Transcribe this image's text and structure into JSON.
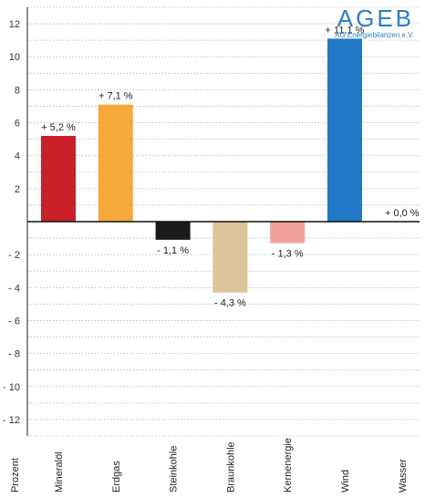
{
  "logo": {
    "name": "AGEB",
    "subtitle": "AG Energiebilanzen e.V."
  },
  "chart_data": {
    "type": "bar",
    "ylabel": "Prozent",
    "ylim": [
      -13,
      13
    ],
    "yticks": [
      12,
      10,
      8,
      6,
      4,
      2,
      -2,
      -4,
      -6,
      -8,
      -10,
      -12
    ],
    "ytick_labels": [
      "12",
      "10",
      "8",
      "6",
      "4",
      "2",
      "- 2",
      "- 4",
      "- 6",
      "- 8",
      "- 10",
      "- 12"
    ],
    "grid": true,
    "categories": [
      "Mineralöl",
      "Erdgas",
      "Steinkohle",
      "Braunkohle",
      "Kernenergie",
      "Wind",
      "Wasser"
    ],
    "values": [
      5.2,
      7.1,
      -1.1,
      -4.3,
      -1.3,
      11.1,
      0.0
    ],
    "data_labels": [
      "+ 5,2 %",
      "+ 7,1 %",
      "- 1,1 %",
      "- 4,3 %",
      "- 1,3 %",
      "+ 11,1 %",
      "+ 0,0 %"
    ],
    "colors": [
      "#c9202a",
      "#f5a93a",
      "#1a1a1a",
      "#dcc399",
      "#f0a09a",
      "#2179c7",
      "#ffffff"
    ]
  }
}
